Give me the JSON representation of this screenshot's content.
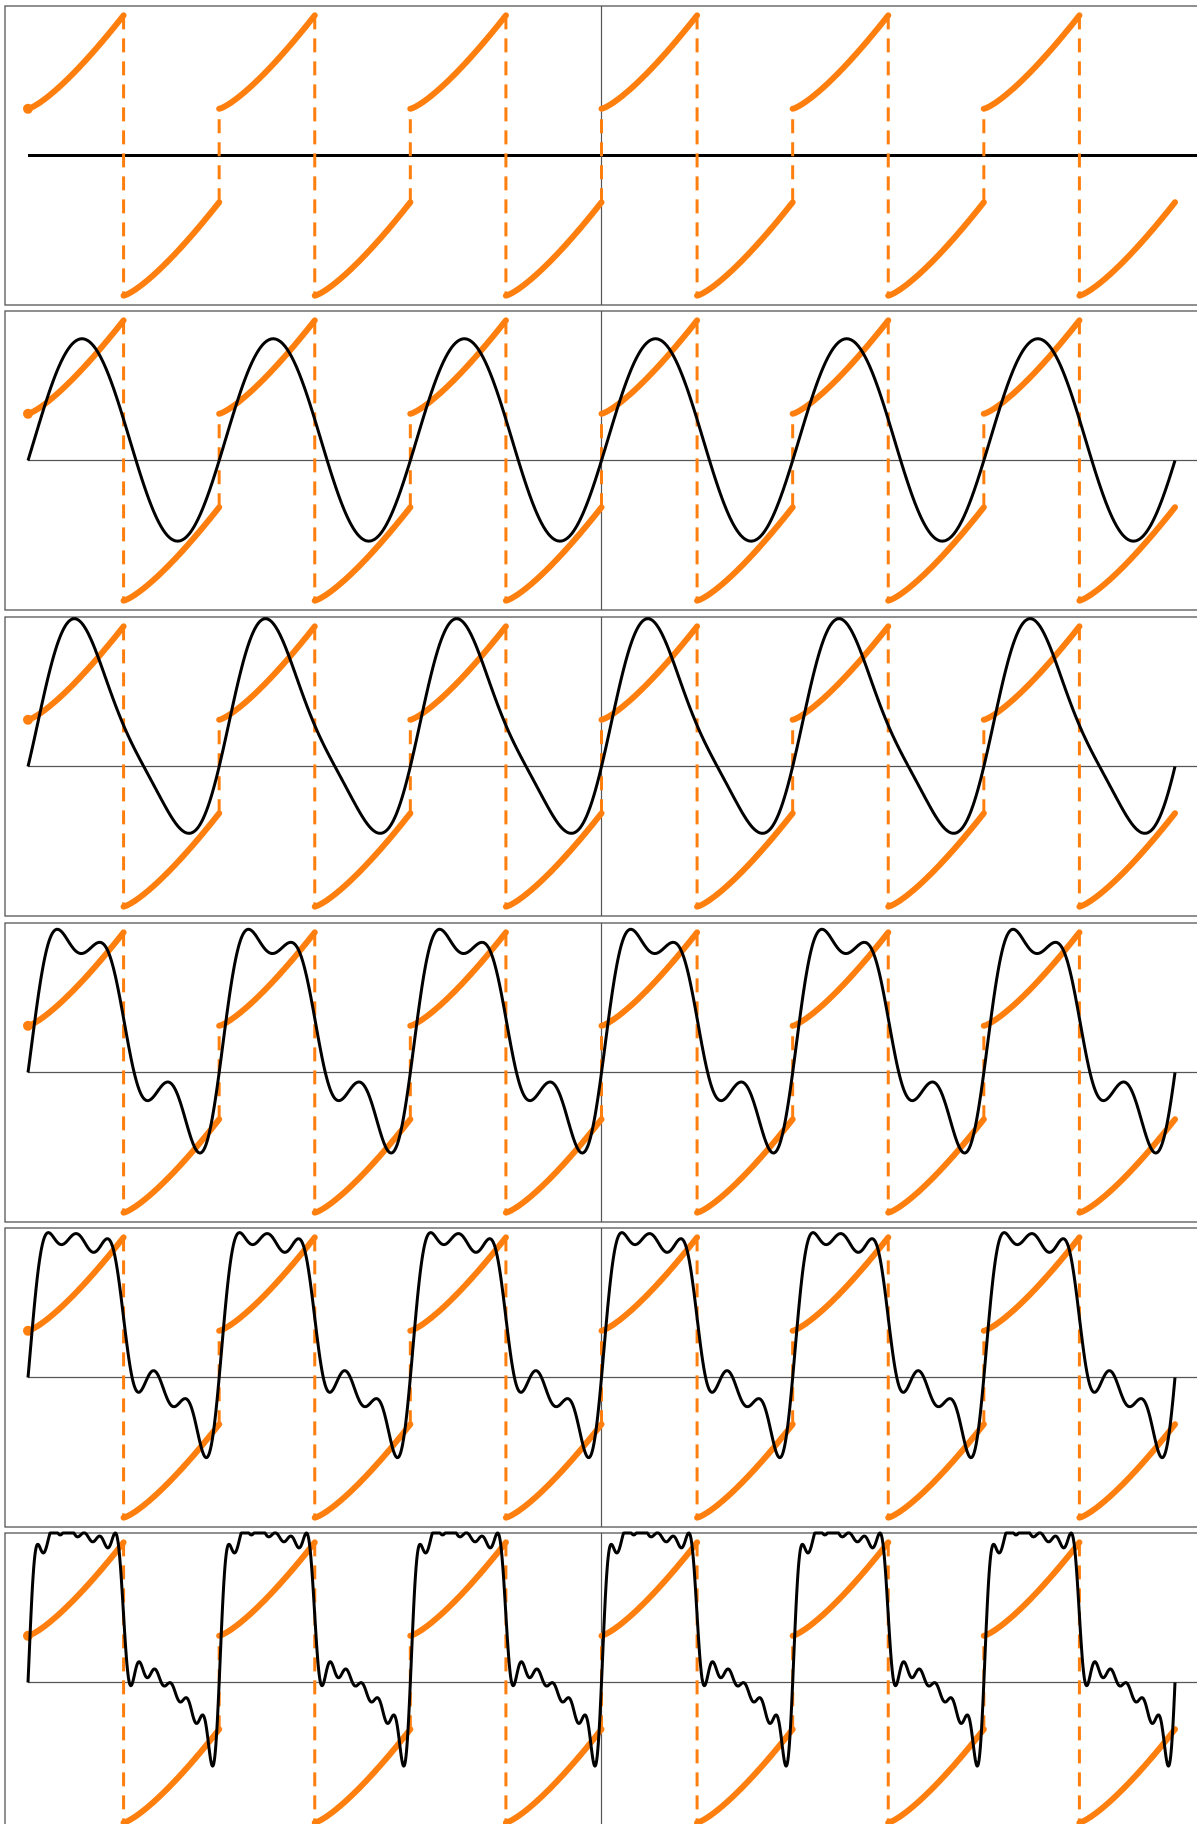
{
  "colors": {
    "target": "#ff7f0e",
    "approximation": "#000000",
    "axes": "#555555",
    "background": "#ffffff"
  },
  "chart_data": [
    {
      "type": "line",
      "title": "",
      "xlabel": "",
      "ylabel": "",
      "grid": false,
      "legend": "none",
      "xlim": [
        -6,
        6
      ],
      "ylim": [
        -1.6,
        1.6
      ],
      "period": 2,
      "target": {
        "left_piece": [
          0.5,
          1.5
        ],
        "right_piece": [
          -1.5,
          -0.5
        ],
        "shape": "convex-increasing"
      },
      "series": [
        {
          "harmonics": 0,
          "values": []
        }
      ]
    },
    {
      "type": "line",
      "title": "",
      "xlabel": "",
      "ylabel": "",
      "grid": false,
      "legend": "none",
      "xlim": [
        -6,
        6
      ],
      "ylim": [
        -1.6,
        1.6
      ],
      "period": 2,
      "target": {
        "left_piece": [
          0.5,
          1.5
        ],
        "right_piece": [
          -1.5,
          -0.5
        ],
        "shape": "convex-increasing"
      },
      "series": [
        {
          "harmonics": 1,
          "coefficients": [
            {
              "n": 1,
              "b": 1.06,
              "a": 0.22
            }
          ]
        }
      ]
    },
    {
      "type": "line",
      "title": "",
      "xlabel": "",
      "ylabel": "",
      "grid": false,
      "legend": "none",
      "xlim": [
        -6,
        6
      ],
      "ylim": [
        -1.6,
        1.6
      ],
      "period": 2,
      "target": {
        "left_piece": [
          0.5,
          1.5
        ],
        "right_piece": [
          -1.5,
          -0.5
        ],
        "shape": "convex-increasing"
      },
      "series": [
        {
          "harmonics": 2,
          "coefficients": [
            {
              "n": 1,
              "b": 1.06,
              "a": 0.22
            },
            {
              "n": 2,
              "b": 0.15,
              "a": 0.15
            }
          ]
        }
      ]
    },
    {
      "type": "line",
      "title": "",
      "xlabel": "",
      "ylabel": "",
      "grid": false,
      "legend": "none",
      "xlim": [
        -6,
        6
      ],
      "ylim": [
        -1.6,
        1.6
      ],
      "period": 2,
      "target": {
        "left_piece": [
          0.5,
          1.5
        ],
        "right_piece": [
          -1.5,
          -0.5
        ],
        "shape": "convex-increasing"
      },
      "series": [
        {
          "harmonics": 3,
          "coefficients": [
            {
              "n": 1,
              "b": 1.06,
              "a": 0.22
            },
            {
              "n": 2,
              "b": 0.15,
              "a": 0.15
            },
            {
              "n": 3,
              "b": 0.35,
              "a": 0.07
            }
          ]
        }
      ]
    },
    {
      "type": "line",
      "title": "",
      "xlabel": "",
      "ylabel": "",
      "grid": false,
      "legend": "none",
      "xlim": [
        -6,
        6
      ],
      "ylim": [
        -1.6,
        1.6
      ],
      "period": 2,
      "target": {
        "left_piece": [
          0.5,
          1.5
        ],
        "right_piece": [
          -1.5,
          -0.5
        ],
        "shape": "convex-increasing"
      },
      "series": [
        {
          "harmonics": 5,
          "coefficients": [
            {
              "n": 1,
              "b": 1.06,
              "a": 0.22
            },
            {
              "n": 2,
              "b": 0.15,
              "a": 0.15
            },
            {
              "n": 3,
              "b": 0.35,
              "a": 0.07
            },
            {
              "n": 4,
              "b": 0.04,
              "a": 0.07
            },
            {
              "n": 5,
              "b": 0.21,
              "a": 0.03
            }
          ]
        }
      ]
    },
    {
      "type": "line",
      "title": "",
      "xlabel": "",
      "ylabel": "",
      "grid": false,
      "legend": "none",
      "xlim": [
        -6,
        6
      ],
      "ylim": [
        -1.6,
        1.6
      ],
      "period": 2,
      "target": {
        "left_piece": [
          0.5,
          1.5
        ],
        "right_piece": [
          -1.5,
          -0.5
        ],
        "shape": "convex-increasing"
      },
      "series": [
        {
          "harmonics": 11,
          "coefficients": [
            {
              "n": 1,
              "b": 1.06,
              "a": 0.22
            },
            {
              "n": 2,
              "b": 0.15,
              "a": 0.15
            },
            {
              "n": 3,
              "b": 0.35,
              "a": 0.07
            },
            {
              "n": 4,
              "b": 0.04,
              "a": 0.07
            },
            {
              "n": 5,
              "b": 0.21,
              "a": 0.03
            },
            {
              "n": 6,
              "b": 0.03,
              "a": 0.04
            },
            {
              "n": 7,
              "b": 0.15,
              "a": 0.02
            },
            {
              "n": 8,
              "b": 0.02,
              "a": 0.03
            },
            {
              "n": 9,
              "b": 0.12,
              "a": 0.01
            },
            {
              "n": 10,
              "b": 0.02,
              "a": 0.02
            },
            {
              "n": 11,
              "b": 0.1,
              "a": 0.01
            }
          ]
        }
      ]
    }
  ]
}
